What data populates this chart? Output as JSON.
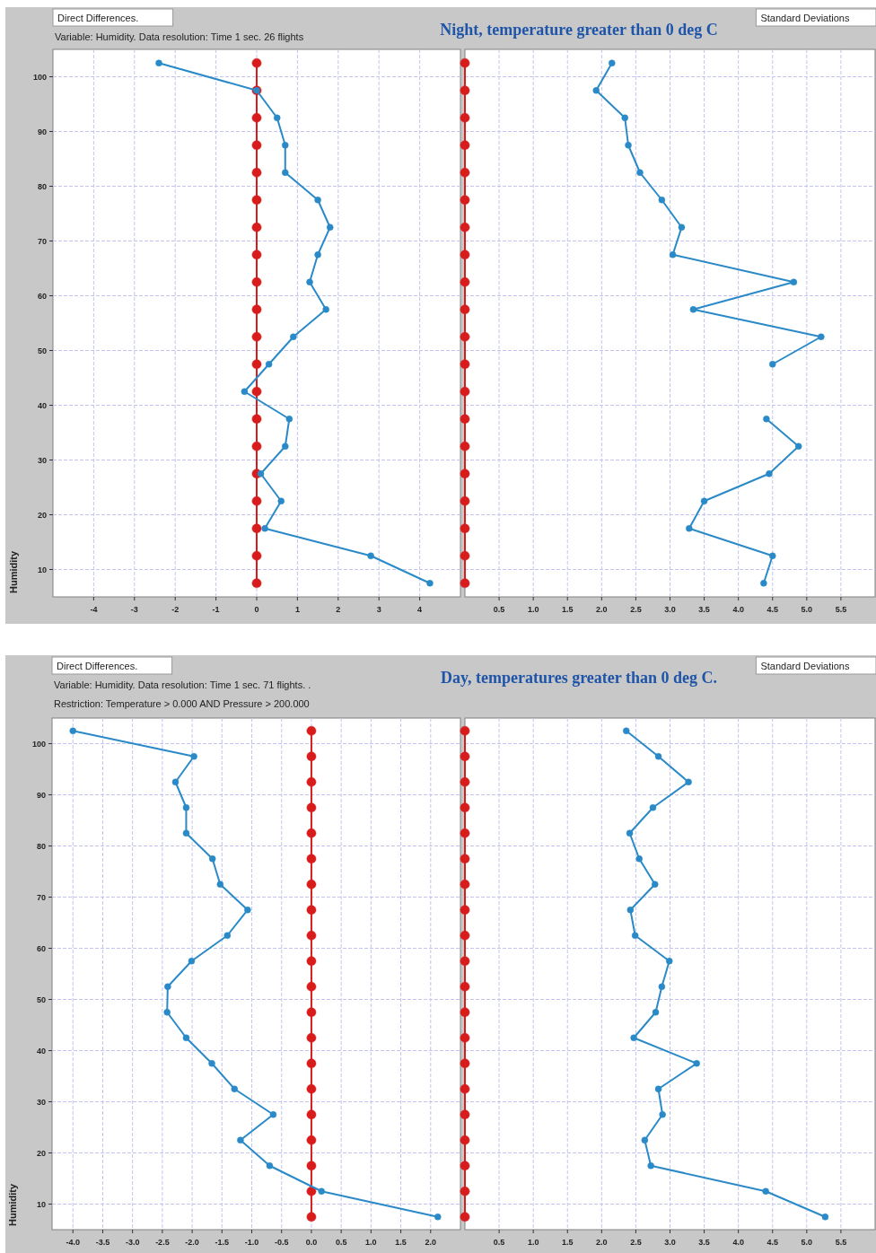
{
  "chart_data": [
    {
      "type": "line",
      "title": "Direct Differences.",
      "subtitle": "Variable: Humidity. Data resolution: Time 1 sec. 26 flights",
      "ylabel": "Humidity",
      "xlim": [
        -5,
        5
      ],
      "ylim": [
        5,
        105
      ],
      "xticks": [
        -4,
        -3,
        -2,
        -1,
        0,
        1,
        2,
        3,
        4
      ],
      "yticks": [
        10,
        20,
        30,
        40,
        50,
        60,
        70,
        80,
        90,
        100
      ],
      "grid": true,
      "marker": "circle",
      "line_style": "solid",
      "series": [
        {
          "color": "#d81c1c",
          "x": [
            0,
            0,
            0,
            0,
            0,
            0,
            0,
            0,
            0,
            0,
            0,
            0,
            0,
            0,
            0,
            0,
            0,
            0,
            0,
            0
          ],
          "values": [
            102.5,
            97.5,
            92.5,
            87.5,
            82.5,
            77.5,
            72.5,
            67.5,
            62.5,
            57.5,
            52.5,
            47.5,
            42.5,
            37.5,
            32.5,
            27.5,
            22.5,
            17.5,
            12.5,
            7.5
          ]
        },
        {
          "color": "#2a8ac8",
          "x": [
            -2.4,
            0,
            0.5,
            0.7,
            0.7,
            1.5,
            1.8,
            1.5,
            1.3,
            1.7,
            0.9,
            0.3,
            -0.3,
            0.8,
            0.7,
            0.1,
            0.6,
            0.2,
            2.8,
            4.25
          ],
          "values": [
            102.5,
            97.5,
            92.5,
            87.5,
            82.5,
            77.5,
            72.5,
            67.5,
            62.5,
            57.5,
            52.5,
            47.5,
            42.5,
            37.5,
            32.5,
            27.5,
            22.5,
            17.5,
            12.5,
            7.5
          ]
        }
      ]
    },
    {
      "type": "line",
      "title": "Standard Deviations",
      "subtitle": "Night, temperature greater than 0 deg C",
      "xlim": [
        0,
        6
      ],
      "ylim": [
        5,
        105
      ],
      "xticks": [
        {
          "value": 0.5,
          "label": "0.5"
        },
        {
          "value": 1,
          "label": "1.0"
        },
        {
          "value": 1.5,
          "label": "1.5"
        },
        {
          "value": 2,
          "label": "2.0"
        },
        {
          "value": 2.5,
          "label": "2.5"
        },
        {
          "value": 3,
          "label": "3.0"
        },
        {
          "value": 3.5,
          "label": "3.5"
        },
        {
          "value": 4,
          "label": "4.0"
        },
        {
          "value": 4.5,
          "label": "4.5"
        },
        {
          "value": 5,
          "label": "5.0"
        },
        {
          "value": 5.5,
          "label": "5.5"
        }
      ],
      "yticks": [
        10,
        20,
        30,
        40,
        50,
        60,
        70,
        80,
        90,
        100
      ],
      "tick_labels": "x",
      "grid": true,
      "marker": "circle",
      "line_style": "solid",
      "series": [
        {
          "color": "#d81c1c",
          "x": [
            0,
            0,
            0,
            0,
            0,
            0,
            0,
            0,
            0,
            0,
            0,
            0,
            0,
            0,
            0,
            0,
            0,
            0,
            0,
            0
          ],
          "values": [
            102.5,
            97.5,
            92.5,
            87.5,
            82.5,
            77.5,
            72.5,
            67.5,
            62.5,
            57.5,
            52.5,
            47.5,
            42.5,
            37.5,
            32.5,
            27.5,
            22.5,
            17.5,
            12.5,
            7.5
          ]
        },
        {
          "color": "#2a8ac8",
          "x": [
            2.15,
            1.92,
            2.34,
            2.39,
            2.56,
            2.88,
            3.17,
            3.04,
            4.81,
            3.34,
            5.21,
            4.5,
            null,
            4.41,
            4.88,
            4.45,
            3.5,
            3.28,
            4.5,
            4.37
          ],
          "values": [
            102.5,
            97.5,
            92.5,
            87.5,
            82.5,
            77.5,
            72.5,
            67.5,
            62.5,
            57.5,
            52.5,
            47.5,
            null,
            37.5,
            32.5,
            27.5,
            22.5,
            17.5,
            12.5,
            7.5
          ]
        }
      ]
    },
    {
      "type": "line",
      "title": "Direct Differences.",
      "subtitle": "Variable: Humidity. Data resolution: Time 1 sec. 71 flights. .",
      "annotations": [
        "Restriction: Temperature > 0.000  AND  Pressure > 200.000"
      ],
      "ylabel": "Humidity",
      "xlim": [
        -4.35,
        2.5
      ],
      "ylim": [
        5,
        105
      ],
      "xticks": [
        {
          "value": -4,
          "label": "-4.0"
        },
        {
          "value": -3.5,
          "label": "-3.5"
        },
        {
          "value": -3,
          "label": "-3.0"
        },
        {
          "value": -2.5,
          "label": "-2.5"
        },
        {
          "value": -2,
          "label": "-2.0"
        },
        {
          "value": -1.5,
          "label": "-1.5"
        },
        {
          "value": -1,
          "label": "-1.0"
        },
        {
          "value": -0.5,
          "label": "-0.5"
        },
        {
          "value": 0,
          "label": "0.0"
        },
        {
          "value": 0.5,
          "label": "0.5"
        },
        {
          "value": 1,
          "label": "1.0"
        },
        {
          "value": 1.5,
          "label": "1.5"
        },
        {
          "value": 2,
          "label": "2.0"
        }
      ],
      "yticks": [
        10,
        20,
        30,
        40,
        50,
        60,
        70,
        80,
        90,
        100
      ],
      "grid": true,
      "marker": "circle",
      "line_style": "solid",
      "series": [
        {
          "color": "#d81c1c",
          "x": [
            0,
            0,
            0,
            0,
            0,
            0,
            0,
            0,
            0,
            0,
            0,
            0,
            0,
            0,
            0,
            0,
            0,
            0,
            0,
            0
          ],
          "values": [
            102.5,
            97.5,
            92.5,
            87.5,
            82.5,
            77.5,
            72.5,
            67.5,
            62.5,
            57.5,
            52.5,
            47.5,
            42.5,
            37.5,
            32.5,
            27.5,
            22.5,
            17.5,
            12.5,
            7.5
          ]
        },
        {
          "color": "#2a8ac8",
          "x": [
            -4.0,
            -1.97,
            -2.28,
            -2.1,
            -2.1,
            -1.66,
            -1.53,
            -1.07,
            -1.41,
            -2.01,
            -2.41,
            -2.42,
            -2.1,
            -1.67,
            -1.29,
            -0.64,
            -1.19,
            -0.7,
            0.17,
            2.12
          ],
          "values": [
            102.5,
            97.5,
            92.5,
            87.5,
            82.5,
            77.5,
            72.5,
            67.5,
            62.5,
            57.5,
            52.5,
            47.5,
            42.5,
            37.5,
            32.5,
            27.5,
            22.5,
            17.5,
            12.5,
            7.5
          ]
        }
      ]
    },
    {
      "type": "line",
      "title": "Standard Deviations",
      "subtitle": "Day, temperatures greater than 0 deg C.",
      "xlim": [
        0,
        6
      ],
      "ylim": [
        5,
        105
      ],
      "xticks": [
        {
          "value": 0.5,
          "label": "0.5"
        },
        {
          "value": 1,
          "label": "1.0"
        },
        {
          "value": 1.5,
          "label": "1.5"
        },
        {
          "value": 2,
          "label": "2.0"
        },
        {
          "value": 2.5,
          "label": "2.5"
        },
        {
          "value": 3,
          "label": "3.0"
        },
        {
          "value": 3.5,
          "label": "3.5"
        },
        {
          "value": 4,
          "label": "4.0"
        },
        {
          "value": 4.5,
          "label": "4.5"
        },
        {
          "value": 5,
          "label": "5.0"
        },
        {
          "value": 5.5,
          "label": "5.5"
        }
      ],
      "yticks": [
        10,
        20,
        30,
        40,
        50,
        60,
        70,
        80,
        90,
        100
      ],
      "tick_labels": "x",
      "grid": true,
      "marker": "circle",
      "line_style": "solid",
      "series": [
        {
          "color": "#d81c1c",
          "x": [
            0,
            0,
            0,
            0,
            0,
            0,
            0,
            0,
            0,
            0,
            0,
            0,
            0,
            0,
            0,
            0,
            0,
            0,
            0,
            0
          ],
          "values": [
            102.5,
            97.5,
            92.5,
            87.5,
            82.5,
            77.5,
            72.5,
            67.5,
            62.5,
            57.5,
            52.5,
            47.5,
            42.5,
            37.5,
            32.5,
            27.5,
            22.5,
            17.5,
            12.5,
            7.5
          ]
        },
        {
          "color": "#2a8ac8",
          "x": [
            2.36,
            2.83,
            3.27,
            2.75,
            2.41,
            2.55,
            2.78,
            2.42,
            2.49,
            2.99,
            2.88,
            2.79,
            2.47,
            3.39,
            2.83,
            2.89,
            2.63,
            2.72,
            4.4,
            5.27
          ],
          "values": [
            102.5,
            97.5,
            92.5,
            87.5,
            82.5,
            77.5,
            72.5,
            67.5,
            62.5,
            57.5,
            52.5,
            47.5,
            42.5,
            37.5,
            32.5,
            27.5,
            22.5,
            17.5,
            12.5,
            7.5
          ]
        }
      ]
    }
  ]
}
